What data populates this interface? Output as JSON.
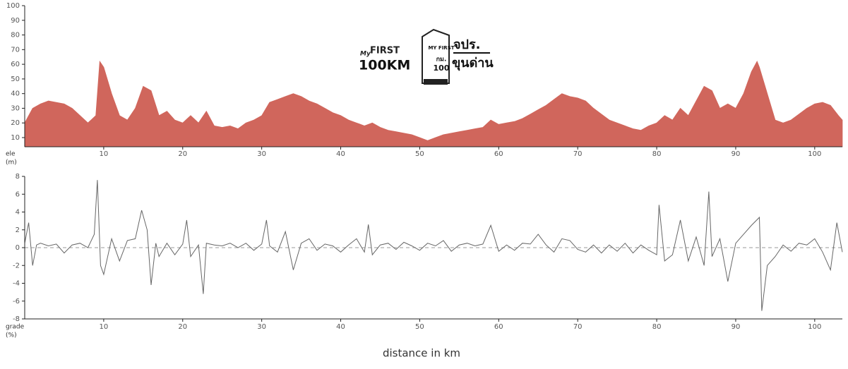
{
  "logo": {
    "texts": [
      "My",
      "FIRST",
      "100KM",
      "MY FIRST",
      "กม.",
      "100",
      "จปร.",
      "ขุนด่าน"
    ]
  },
  "chart_data": [
    {
      "type": "area",
      "ylabel": [
        "ele",
        "(m)"
      ],
      "color": "#d0665c",
      "x": [
        0,
        1,
        2,
        3,
        4,
        5,
        6,
        7,
        8,
        9,
        9.5,
        10,
        11,
        12,
        13,
        14,
        15,
        16,
        17,
        18,
        19,
        20,
        21,
        22,
        23,
        24,
        25,
        26,
        27,
        28,
        29,
        30,
        31,
        32,
        33,
        34,
        35,
        36,
        37,
        38,
        39,
        40,
        41,
        42,
        43,
        44,
        45,
        46,
        47,
        48,
        49,
        50,
        51,
        52,
        53,
        54,
        55,
        56,
        57,
        58,
        59,
        60,
        61,
        62,
        63,
        64,
        65,
        66,
        67,
        68,
        69,
        70,
        71,
        72,
        73,
        74,
        75,
        76,
        77,
        78,
        79,
        80,
        81,
        82,
        83,
        84,
        85,
        86,
        87,
        88,
        89,
        90,
        91,
        92,
        92.7,
        93,
        94,
        95,
        96,
        97,
        98,
        99,
        100,
        101,
        102,
        103,
        103.5
      ],
      "values": [
        20,
        30,
        33,
        35,
        34,
        33,
        30,
        25,
        20,
        25,
        62,
        58,
        40,
        25,
        22,
        30,
        45,
        42,
        25,
        28,
        22,
        20,
        25,
        20,
        28,
        18,
        17,
        18,
        16,
        20,
        22,
        25,
        34,
        36,
        38,
        40,
        38,
        35,
        33,
        30,
        27,
        25,
        22,
        20,
        18,
        20,
        17,
        15,
        14,
        13,
        12,
        10,
        8,
        10,
        12,
        13,
        14,
        15,
        16,
        17,
        22,
        19,
        20,
        21,
        23,
        26,
        29,
        32,
        36,
        40,
        38,
        37,
        35,
        30,
        26,
        22,
        20,
        18,
        16,
        15,
        18,
        20,
        25,
        22,
        30,
        25,
        35,
        45,
        42,
        30,
        33,
        30,
        40,
        55,
        62,
        58,
        40,
        22,
        20,
        22,
        26,
        30,
        33,
        34,
        32,
        25,
        22
      ],
      "xlim": [
        0,
        103.5
      ],
      "xticks": [
        10,
        20,
        30,
        40,
        50,
        60,
        70,
        80,
        90,
        100
      ],
      "ylim": [
        3.75,
        100
      ],
      "yticks": [
        10,
        20,
        30,
        40,
        50,
        60,
        70,
        80,
        90,
        100
      ]
    },
    {
      "type": "line",
      "ylabel": [
        "grade",
        "(%)"
      ],
      "xlabel": "distance in km",
      "color": "#666666",
      "x": [
        0,
        0.5,
        1,
        1.5,
        2,
        3,
        4,
        5,
        6,
        7,
        8,
        8.8,
        9.2,
        9.6,
        10,
        11,
        12,
        13,
        14,
        14.8,
        15.5,
        16,
        16.6,
        17,
        18,
        19,
        20,
        20.5,
        21,
        22,
        22.6,
        23,
        24,
        25,
        26,
        27,
        28,
        29,
        30,
        30.6,
        31,
        32,
        33,
        34,
        35,
        36,
        37,
        38,
        39,
        40,
        41,
        42,
        43,
        43.5,
        44,
        45,
        46,
        47,
        48,
        49,
        50,
        51,
        52,
        53,
        54,
        55,
        56,
        57,
        58,
        59,
        60,
        61,
        62,
        63,
        64,
        65,
        66,
        67,
        68,
        69,
        70,
        71,
        72,
        73,
        74,
        75,
        76,
        77,
        78,
        79,
        80,
        80.3,
        81,
        82,
        83,
        84,
        85,
        86,
        86.6,
        87,
        88,
        89,
        90,
        91,
        92,
        93,
        93.3,
        94,
        95,
        96,
        97,
        98,
        99,
        100,
        101,
        102,
        102.8,
        103.5
      ],
      "values": [
        0.5,
        2.8,
        -2,
        0.3,
        0.5,
        0.2,
        0.4,
        -0.6,
        0.3,
        0.5,
        0,
        1.5,
        7.6,
        -2,
        -3,
        1,
        -1.5,
        0.8,
        1,
        4.2,
        2,
        -4.2,
        0.5,
        -1,
        0.5,
        -0.8,
        0.4,
        3.1,
        -1,
        0.3,
        -5.2,
        0.5,
        0.3,
        0.2,
        0.5,
        0,
        0.5,
        -0.3,
        0.4,
        3.1,
        0.2,
        -0.5,
        1.8,
        -2.5,
        0.5,
        1,
        -0.3,
        0.4,
        0.2,
        -0.5,
        0.3,
        1,
        -0.5,
        2.6,
        -0.8,
        0.3,
        0.5,
        -0.2,
        0.6,
        0.2,
        -0.3,
        0.5,
        0.2,
        0.8,
        -0.4,
        0.3,
        0.5,
        0.2,
        0.4,
        2.5,
        -0.4,
        0.3,
        -0.3,
        0.5,
        0.4,
        1.5,
        0.3,
        -0.5,
        1,
        0.8,
        -0.2,
        -0.5,
        0.3,
        -0.6,
        0.3,
        -0.4,
        0.5,
        -0.6,
        0.3,
        -0.3,
        -0.8,
        4.8,
        -1.5,
        -0.8,
        3.1,
        -1.5,
        1.2,
        -2,
        6.3,
        -1,
        1,
        -3.8,
        0.5,
        1.5,
        2.5,
        3.4,
        -7.1,
        -2,
        -1,
        0.3,
        -0.4,
        0.5,
        0.3,
        1,
        -0.5,
        -2.5,
        2.8,
        -0.5
      ],
      "xlim": [
        0,
        103.5
      ],
      "xticks": [
        10,
        20,
        30,
        40,
        50,
        60,
        70,
        80,
        90,
        100
      ],
      "ylim": [
        -8,
        8
      ],
      "yticks": [
        -8,
        -6,
        -4,
        -2,
        0,
        2,
        4,
        6,
        8
      ],
      "zero_line": true
    }
  ]
}
